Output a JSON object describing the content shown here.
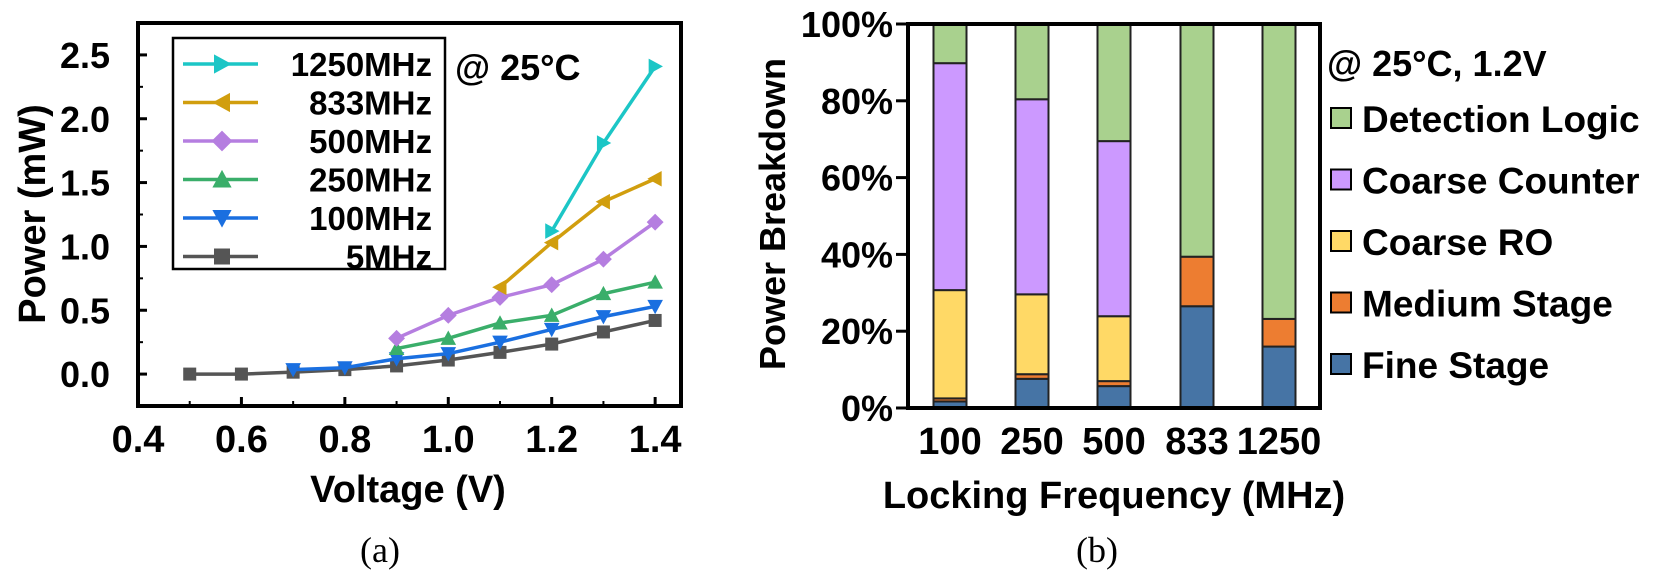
{
  "chart_data": [
    {
      "type": "line",
      "panel_label": "(a)",
      "xlabel": "Voltage (V)",
      "ylabel": "Power (mW)",
      "annotation": "@ 25°C",
      "xlim": [
        0.4,
        1.45
      ],
      "ylim": [
        -0.25,
        2.75
      ],
      "xticks": [
        "0.4",
        "0.6",
        "0.8",
        "1.0",
        "1.2",
        "1.4"
      ],
      "yticks": [
        "0.0",
        "0.5",
        "1.0",
        "1.5",
        "2.0",
        "2.5"
      ],
      "legend_position": "top-left",
      "grid": false,
      "series": [
        {
          "name": "1250MHz",
          "color": "#1cc6c6",
          "marker": "triangle-right",
          "x": [
            1.2,
            1.3,
            1.4
          ],
          "y": [
            1.12,
            1.81,
            2.41
          ]
        },
        {
          "name": "833MHz",
          "color": "#d19e0e",
          "marker": "triangle-left",
          "x": [
            1.1,
            1.2,
            1.3,
            1.4
          ],
          "y": [
            0.68,
            1.03,
            1.35,
            1.53
          ]
        },
        {
          "name": "500MHz",
          "color": "#b57ee0",
          "marker": "diamond",
          "x": [
            0.9,
            1.0,
            1.1,
            1.2,
            1.3,
            1.4
          ],
          "y": [
            0.28,
            0.46,
            0.6,
            0.7,
            0.9,
            1.19
          ]
        },
        {
          "name": "250MHz",
          "color": "#3aae6a",
          "marker": "triangle-up",
          "x": [
            0.9,
            1.0,
            1.1,
            1.2,
            1.3,
            1.4
          ],
          "y": [
            0.2,
            0.28,
            0.4,
            0.46,
            0.63,
            0.72
          ]
        },
        {
          "name": "100MHz",
          "color": "#1a6fe0",
          "marker": "triangle-down",
          "x": [
            0.7,
            0.8,
            0.9,
            1.0,
            1.1,
            1.2,
            1.3,
            1.4
          ],
          "y": [
            0.035,
            0.05,
            0.12,
            0.16,
            0.25,
            0.35,
            0.45,
            0.53
          ]
        },
        {
          "name": "5MHz",
          "color": "#555555",
          "marker": "square",
          "x": [
            0.5,
            0.6,
            0.7,
            0.8,
            0.9,
            1.0,
            1.1,
            1.2,
            1.3,
            1.4
          ],
          "y": [
            0.0,
            0.0,
            0.015,
            0.035,
            0.064,
            0.11,
            0.17,
            0.235,
            0.33,
            0.42
          ]
        }
      ]
    },
    {
      "type": "stacked-bar",
      "panel_label": "(b)",
      "xlabel": "Locking Frequency (MHz)",
      "ylabel": "Power Breakdown",
      "annotation": "@ 25°C, 1.2V",
      "ylim": [
        0,
        100
      ],
      "yticks": [
        "0%",
        "20%",
        "40%",
        "60%",
        "80%",
        "100%"
      ],
      "categories": [
        "100",
        "250",
        "500",
        "833",
        "1250"
      ],
      "legend_position": "right",
      "series": [
        {
          "name": "Fine Stage",
          "color": "#4674a5",
          "values": [
            1.7,
            7.6,
            5.7,
            26.5,
            16.0
          ]
        },
        {
          "name": "Medium Stage",
          "color": "#ed7d31",
          "values": [
            0.8,
            1.2,
            1.3,
            12.9,
            7.2
          ]
        },
        {
          "name": "Coarse RO",
          "color": "#ffd966",
          "values": [
            28.2,
            20.8,
            16.9,
            0,
            0
          ]
        },
        {
          "name": "Coarse Counter",
          "color": "#cc99ff",
          "values": [
            59.1,
            50.8,
            45.6,
            0,
            0
          ]
        },
        {
          "name": "Detection Logic",
          "color": "#a9d18e",
          "values": [
            10.2,
            19.6,
            30.5,
            60.6,
            76.8
          ]
        }
      ],
      "legend_order": [
        "Detection Logic",
        "Coarse Counter",
        "Coarse RO",
        "Medium Stage",
        "Fine Stage"
      ]
    }
  ]
}
